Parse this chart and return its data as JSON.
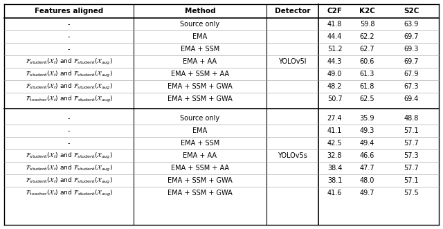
{
  "headers": [
    "Features aligned",
    "Method",
    "Detector",
    "C2F",
    "K2C",
    "S2C"
  ],
  "section1_detector": "YOLOv5l",
  "section2_detector": "YOLOv5s",
  "rows_section1": [
    [
      "-",
      "Source only",
      "41.8",
      "59.8",
      "63.9"
    ],
    [
      "-",
      "EMA",
      "44.4",
      "62.2",
      "69.7"
    ],
    [
      "-",
      "EMA + SSM",
      "51.2",
      "62.7",
      "69.3"
    ],
    [
      "fs_xt_fs_xaug",
      "EMA + AA",
      "44.3",
      "60.6",
      "69.7"
    ],
    [
      "fs_xt_fs_xaug",
      "EMA + SSM + AA",
      "49.0",
      "61.3",
      "67.9"
    ],
    [
      "fs_xt_fs_xaug",
      "EMA + SSM + GWA",
      "48.2",
      "61.8",
      "67.3"
    ],
    [
      "ft_xt_fs_xaug",
      "EMA + SSM + GWA",
      "50.7",
      "62.5",
      "69.4"
    ]
  ],
  "rows_section2": [
    [
      "-",
      "Source only",
      "27.4",
      "35.9",
      "48.8"
    ],
    [
      "-",
      "EMA",
      "41.1",
      "49.3",
      "57.1"
    ],
    [
      "-",
      "EMA + SSM",
      "42.5",
      "49.4",
      "57.7"
    ],
    [
      "fs_xt_fs_xaug",
      "EMA + AA",
      "32.8",
      "46.6",
      "57.3"
    ],
    [
      "fs_xt_fs_xaug",
      "EMA + SSM + AA",
      "38.4",
      "47.7",
      "57.7"
    ],
    [
      "fs_xt_fs_xaug",
      "EMA + SSM + GWA",
      "38.1",
      "48.0",
      "57.1"
    ],
    [
      "ft_xt_fs_xaug",
      "EMA + SSM + GWA",
      "41.6",
      "49.7",
      "57.5"
    ]
  ],
  "font_size": 7.0,
  "header_font_size": 7.5,
  "text_color": "#000000"
}
